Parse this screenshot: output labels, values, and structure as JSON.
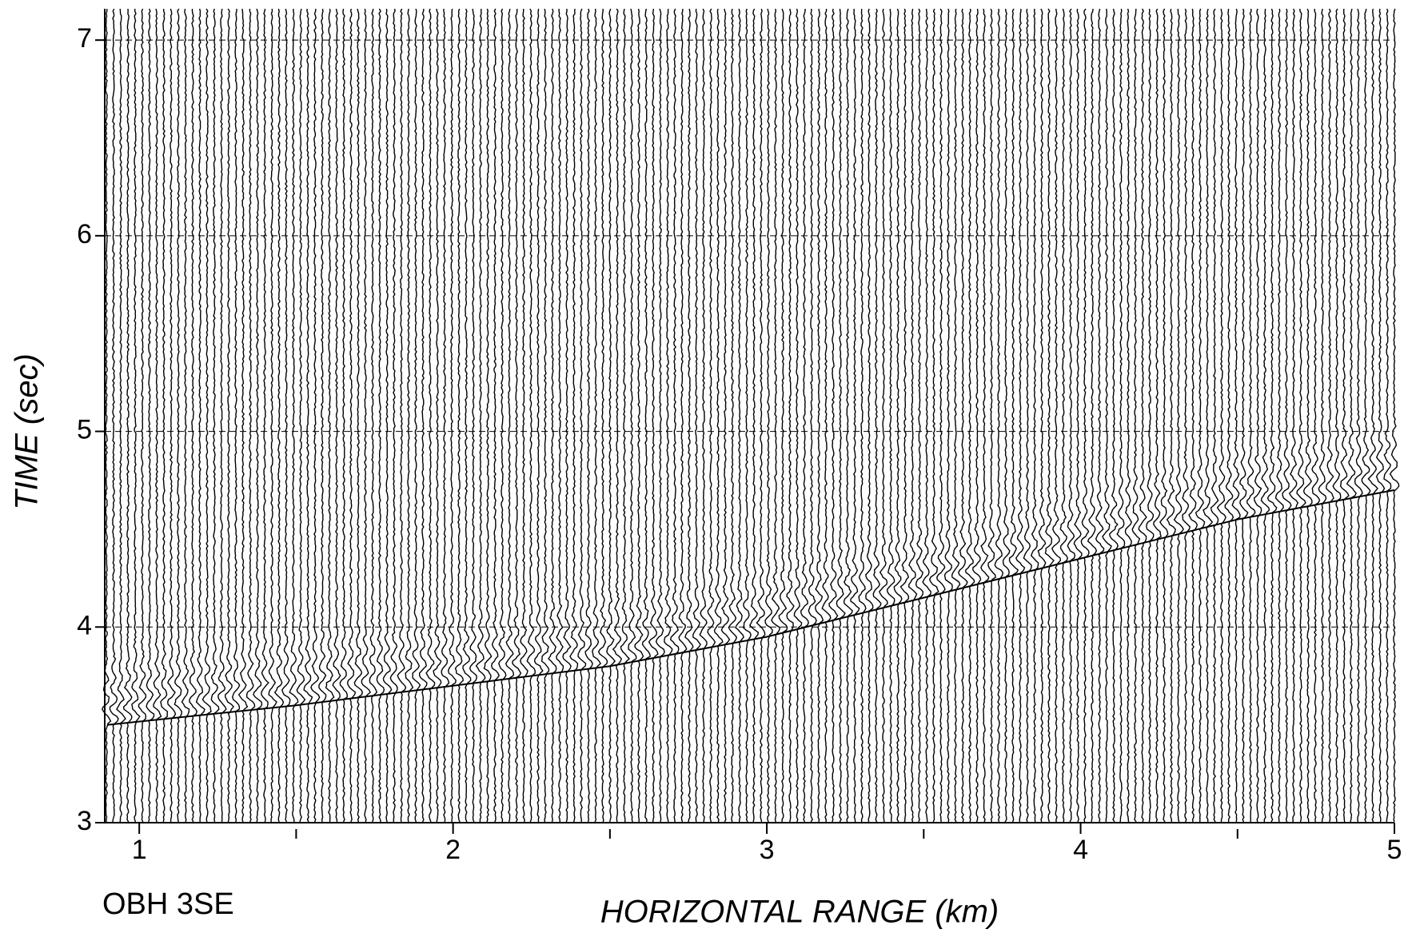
{
  "chart_data": {
    "type": "seismic-section",
    "annotation": "OBH 3SE",
    "xlabel": "HORIZONTAL RANGE (km)",
    "ylabel": "TIME (sec)",
    "xlim": [
      0.89,
      5
    ],
    "ylim": [
      3,
      7.16
    ],
    "xticks": [
      1,
      2,
      3,
      4,
      5
    ],
    "xminorticks": [
      1.5,
      2.5,
      3.5,
      4.5
    ],
    "yticks": [
      3,
      4,
      5,
      6,
      7
    ],
    "grid": true,
    "color": "#000000",
    "x": [
      0.9,
      1.5,
      2,
      2.5,
      3,
      3.5,
      4,
      4.5,
      5
    ],
    "values": [
      3.5,
      3.6,
      3.7,
      3.8,
      3.95,
      4.15,
      4.35,
      4.55,
      4.7
    ]
  }
}
